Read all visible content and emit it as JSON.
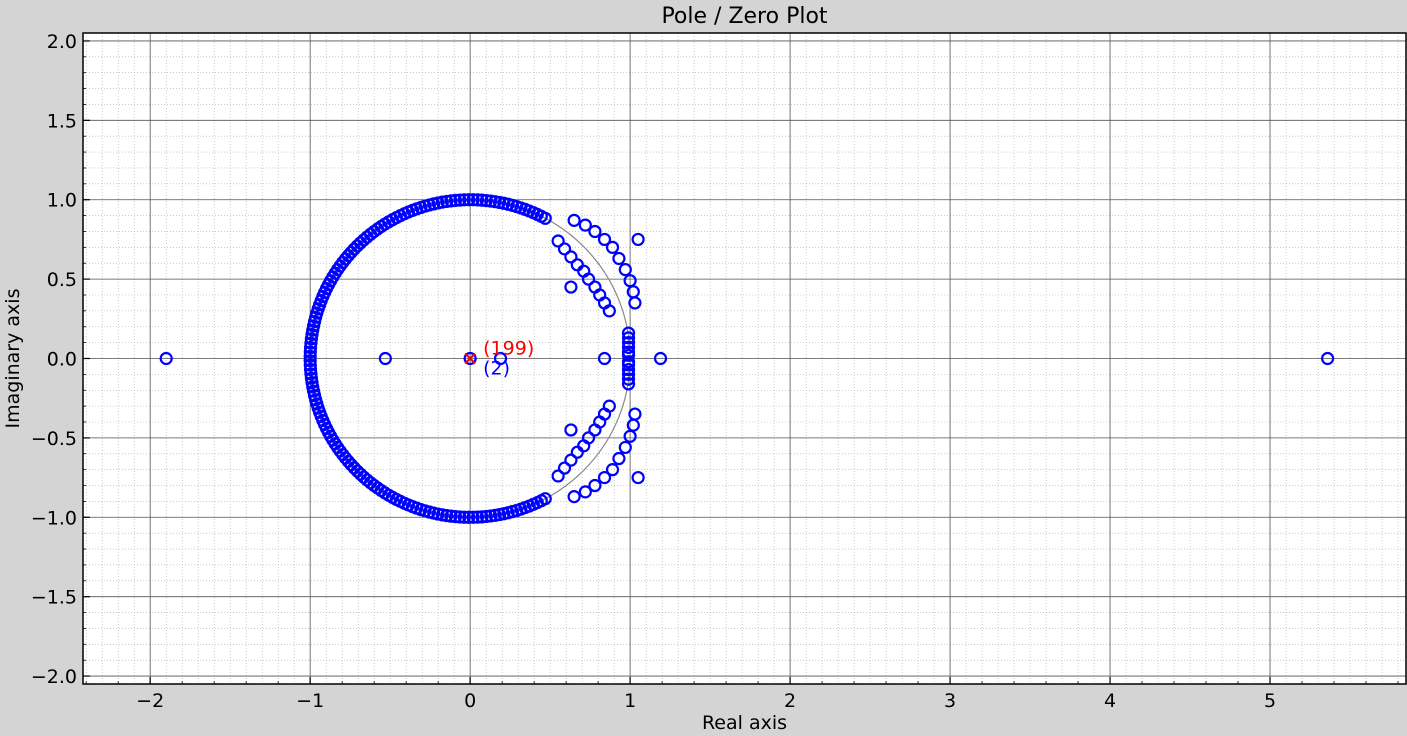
{
  "chart_data": {
    "type": "scatter",
    "title": "Pole / Zero Plot",
    "xlabel": "Real axis",
    "ylabel": "Imaginary axis",
    "xlim": [
      -2.42,
      5.85
    ],
    "ylim": [
      -2.05,
      2.05
    ],
    "xticks": [
      -2,
      -1,
      0,
      1,
      2,
      3,
      4,
      5
    ],
    "xtick_labels": [
      "−2",
      "−1",
      "0",
      "1",
      "2",
      "3",
      "4",
      "5"
    ],
    "yticks": [
      2.0,
      1.5,
      1.0,
      0.5,
      0.0,
      -0.5,
      -1.0,
      -1.5,
      -2.0
    ],
    "ytick_labels": [
      "2.0",
      "1.5",
      "1.0",
      "0.5",
      "0.0",
      "−0.5",
      "−1.0",
      "−1.5",
      "−2.0"
    ],
    "grid": true,
    "minor_grid": true,
    "unit_circle": true,
    "colors": {
      "zeros": "#0000ff",
      "poles": "#ff0000",
      "grid_major": "#555555",
      "grid_minor": "#aaaaaa",
      "unit_circle": "#888888",
      "background": "#d4d4d4",
      "plot_background": "#ffffff"
    },
    "zeros_circle_arc": {
      "radius": 1.0,
      "angle_start_deg": 62,
      "angle_end_deg": 298,
      "count": 150
    },
    "zeros_real": [
      [
        -1.9,
        0
      ],
      [
        -0.53,
        0
      ],
      [
        0.0,
        0
      ],
      [
        0.19,
        0
      ],
      [
        0.84,
        0
      ],
      [
        1.19,
        0
      ],
      [
        5.36,
        0
      ],
      [
        0.99,
        0.16
      ],
      [
        0.99,
        0.13
      ],
      [
        0.99,
        0.1
      ],
      [
        0.99,
        0.07
      ],
      [
        0.99,
        0.04
      ],
      [
        0.99,
        0.02
      ],
      [
        0.99,
        -0.16
      ],
      [
        0.99,
        -0.13
      ],
      [
        0.99,
        -0.1
      ],
      [
        0.99,
        -0.07
      ],
      [
        0.99,
        -0.04
      ],
      [
        0.99,
        -0.02
      ]
    ],
    "zeros_complex_upper": [
      [
        0.65,
        0.87
      ],
      [
        0.72,
        0.84
      ],
      [
        0.78,
        0.8
      ],
      [
        0.84,
        0.75
      ],
      [
        0.89,
        0.7
      ],
      [
        0.93,
        0.63
      ],
      [
        0.97,
        0.56
      ],
      [
        1.0,
        0.49
      ],
      [
        1.02,
        0.42
      ],
      [
        1.03,
        0.35
      ],
      [
        1.05,
        0.75
      ],
      [
        0.55,
        0.74
      ],
      [
        0.59,
        0.69
      ],
      [
        0.63,
        0.64
      ],
      [
        0.67,
        0.59
      ],
      [
        0.71,
        0.55
      ],
      [
        0.74,
        0.5
      ],
      [
        0.78,
        0.45
      ],
      [
        0.81,
        0.4
      ],
      [
        0.84,
        0.35
      ],
      [
        0.87,
        0.3
      ],
      [
        0.63,
        0.45
      ]
    ],
    "pole_count_label": "(199)",
    "zero_count_label": "(2)",
    "poles": [
      [
        0,
        0
      ]
    ]
  }
}
